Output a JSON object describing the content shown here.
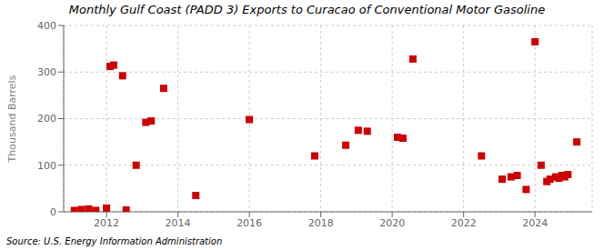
{
  "chart_data": {
    "type": "scatter",
    "title": "Monthly Gulf Coast (PADD 3) Exports to Curacao of Conventional Motor Gasoline",
    "ylabel": "Thousand Barrels",
    "annotation": "Source: U.S. Energy Information Administration",
    "color": "#cc0000",
    "marker": "square",
    "grid": true,
    "xlim": [
      2010.8,
      2025.6
    ],
    "xticks": [
      2012,
      2014,
      2016,
      2018,
      2020,
      2022,
      2024
    ],
    "ylim": [
      0,
      400
    ],
    "yticks": [
      0,
      100,
      200,
      300,
      400
    ],
    "x": [
      2011.1,
      2011.3,
      2011.5,
      2011.7,
      2012.0,
      2012.1,
      2012.2,
      2012.45,
      2012.55,
      2012.83,
      2013.1,
      2013.25,
      2013.6,
      2014.5,
      2016.0,
      2017.83,
      2018.7,
      2019.05,
      2019.3,
      2020.15,
      2020.3,
      2020.58,
      2022.5,
      2023.08,
      2023.33,
      2023.5,
      2023.75,
      2024.0,
      2024.17,
      2024.33,
      2024.42,
      2024.58,
      2024.67,
      2024.75,
      2024.83,
      2024.92,
      2025.17
    ],
    "values": [
      3,
      5,
      6,
      3,
      8,
      312,
      315,
      292,
      4,
      100,
      192,
      195,
      265,
      35,
      198,
      120,
      143,
      175,
      173,
      160,
      158,
      328,
      120,
      70,
      75,
      78,
      48,
      365,
      100,
      65,
      70,
      75,
      72,
      78,
      75,
      80,
      150
    ]
  }
}
